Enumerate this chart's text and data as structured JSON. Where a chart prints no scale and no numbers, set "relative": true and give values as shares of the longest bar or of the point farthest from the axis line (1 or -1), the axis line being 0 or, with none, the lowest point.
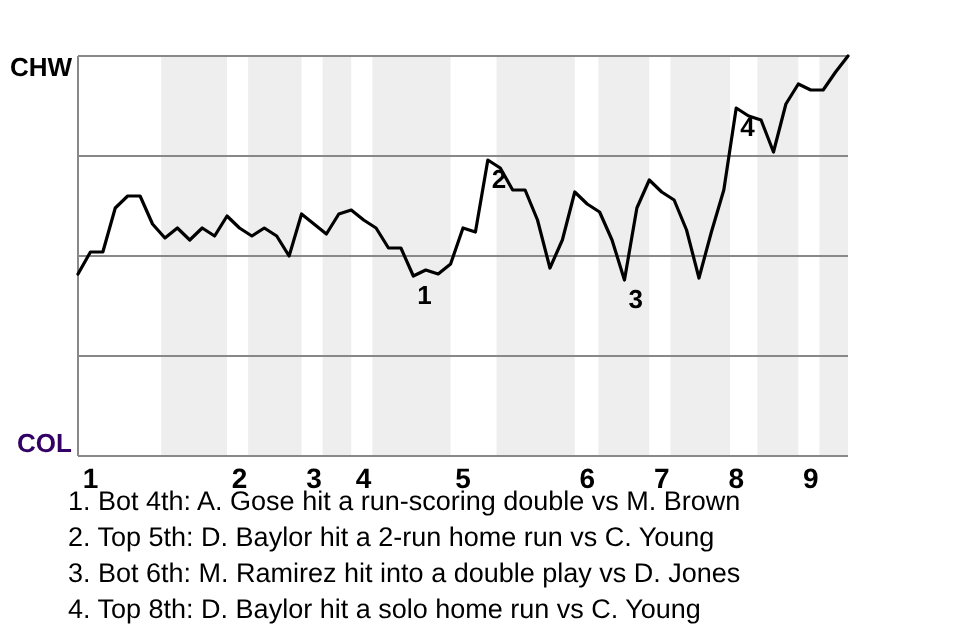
{
  "chart_data": {
    "type": "line",
    "relative": true,
    "categories": [
      null,
      "1",
      null,
      null,
      null,
      null,
      null,
      null,
      null,
      null,
      null,
      null,
      null,
      "2",
      null,
      null,
      null,
      null,
      null,
      "3",
      null,
      null,
      null,
      "4",
      null,
      null,
      null,
      null,
      null,
      null,
      null,
      "5",
      null,
      null,
      null,
      null,
      null,
      null,
      null,
      null,
      null,
      "6",
      null,
      null,
      null,
      null,
      null,
      "7",
      null,
      null,
      null,
      null,
      null,
      "8",
      null,
      null,
      null,
      null,
      null,
      "9",
      null,
      null,
      null
    ],
    "series": [
      {
        "color": "#000000",
        "values": [
          0.455,
          0.51,
          0.51,
          0.62,
          0.65,
          0.65,
          0.58,
          0.545,
          0.57,
          0.54,
          0.57,
          0.55,
          0.6,
          0.57,
          0.55,
          0.57,
          0.55,
          0.5,
          0.605,
          0.58,
          0.555,
          0.605,
          0.615,
          0.59,
          0.57,
          0.52,
          0.52,
          0.45,
          0.465,
          0.455,
          0.48,
          0.57,
          0.56,
          0.74,
          0.72,
          0.665,
          0.665,
          0.59,
          0.47,
          0.54,
          0.66,
          0.63,
          0.61,
          0.54,
          0.44,
          0.62,
          0.69,
          0.66,
          0.64,
          0.565,
          0.445,
          0.56,
          0.665,
          0.87,
          0.85,
          0.84,
          0.76,
          0.88,
          0.93,
          0.915,
          0.915,
          0.96,
          1
        ],
        "name": null
      }
    ],
    "ref_lines": [
      {
        "axis": "y",
        "value": 0.25,
        "color": "#888888"
      },
      {
        "axis": "y",
        "value": 0.5,
        "color": "#888888"
      },
      {
        "axis": "y",
        "value": 0.75,
        "color": "#888888"
      },
      {
        "axis": "y",
        "value": 1,
        "color": "#888888"
      }
    ],
    "annotations": [
      "CHW",
      "COL",
      {
        "text": "1",
        "y": 0.45
      },
      {
        "text": "2",
        "y": 0.74
      },
      {
        "text": "3",
        "y": 0.44
      },
      {
        "text": "4",
        "y": 0.87
      },
      "1. Bot 4th: A. Gose hit a run-scoring double vs M. Brown",
      "2. Top 5th: D. Baylor hit a 2-run home run vs C. Young",
      "3. Bot 6th: M. Ramirez hit into a double play vs D. Jones",
      "4. Top 8th: D. Baylor hit a solo home run vs C. Young"
    ]
  }
}
